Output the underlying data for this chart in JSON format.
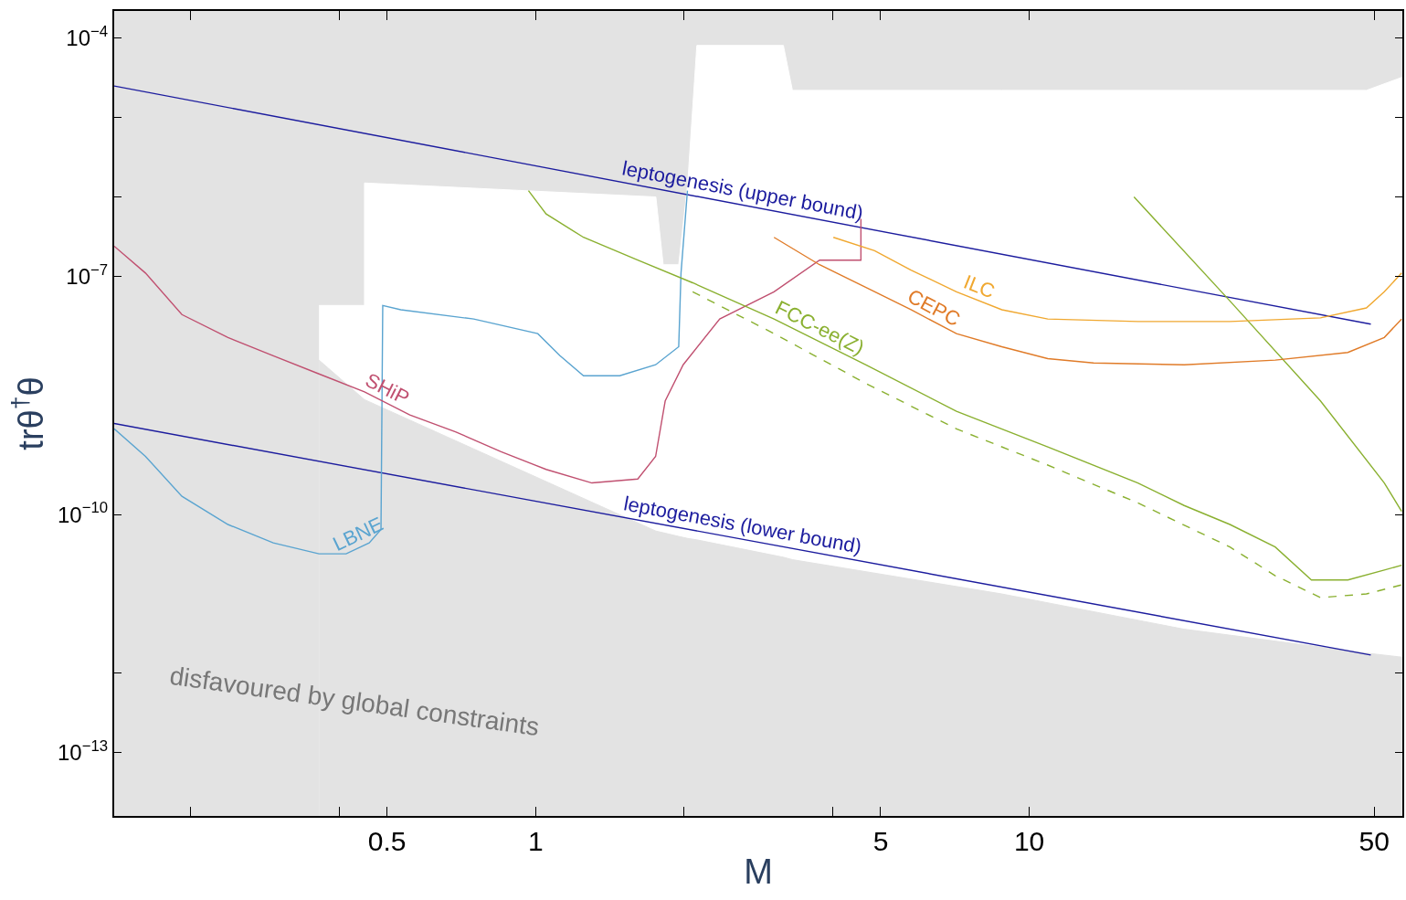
{
  "chart_data": {
    "type": "line",
    "xlabel": "M",
    "ylabel": "trθ$^{†}$θ",
    "log": "xy",
    "grid": false,
    "legend": false,
    "marker": "none",
    "xlim": [
      0.14,
      57
    ],
    "ylim": [
      1.6e-14,
      0.00022
    ],
    "xticks": [
      {
        "value": 0.2,
        "label": null
      },
      {
        "value": 0.4,
        "label": null
      },
      0.5,
      1,
      {
        "value": 2,
        "label": null
      },
      {
        "value": 4,
        "label": null
      },
      5,
      10,
      50
    ],
    "yticks": [
      {
        "value": 0.0001,
        "label": "10$^{−4}$"
      },
      {
        "value": 1e-05,
        "label": null
      },
      {
        "value": 1e-06,
        "label": null
      },
      {
        "value": 1e-07,
        "label": "10$^{−7}$"
      },
      {
        "value": 1e-10,
        "label": "10$^{−10}$"
      },
      {
        "value": 1e-12,
        "label": null
      },
      {
        "value": 1e-13,
        "label": "10$^{−13}$"
      }
    ],
    "annotations": [
      "disfavoured by global constraints"
    ],
    "series": [
      {
        "type": "area",
        "color": "#ffffff",
        "x": [
          0.364,
          0.45,
          0.45,
          1.752,
          1.813,
          1.949,
          2.033,
          2.121,
          3.176,
          3.313,
          8.8,
          20.59,
          48.2,
          56.8
        ],
        "values": [
          4.3e-08,
          4.3e-08,
          1.5e-06,
          1e-06,
          1.4e-07,
          1.4e-07,
          1.5e-06,
          8.1e-05,
          8.1e-05,
          2.2e-05,
          2.2e-05,
          2.2e-05,
          2.2e-05,
          3.2e-05
        ]
      },
      {
        "type": "area",
        "color": "#e3e3e3",
        "x": [
          0.364,
          0.45,
          1.752,
          1.813,
          1.949,
          2.033,
          2.121,
          3.176,
          3.313,
          8.8,
          20.59,
          48.2,
          56.8
        ],
        "values": [
          8.8e-09,
          2.8e-09,
          6.2e-11,
          5.9e-11,
          5.3e-11,
          5e-11,
          4.8e-11,
          2.9e-11,
          2.7e-11,
          1e-11,
          3.6e-12,
          1.8e-12,
          1.6e-12
        ]
      },
      {
        "name": "leptogenesis (upper bound)",
        "color": "#1c1c9e",
        "x": [
          0.14,
          49.2
        ],
        "values": [
          2.5e-05,
          2.5e-08
        ]
      },
      {
        "name": "leptogenesis (lower bound)",
        "color": "#1c1c9e",
        "x": [
          0.14,
          49.2
        ],
        "values": [
          1.4e-09,
          1.7e-12
        ]
      },
      {
        "name": "LBNE",
        "color": "#5aa4d0",
        "x": [
          0.14,
          0.162,
          0.192,
          0.238,
          0.294,
          0.364,
          0.413,
          0.46,
          0.486,
          0.49,
          0.533,
          0.749,
          1.01,
          1.12,
          1.25,
          1.48,
          1.75,
          1.949,
          1.97,
          2.03
        ],
        "values": [
          1.2e-09,
          5.4e-10,
          1.7e-10,
          7.5e-11,
          4.4e-11,
          3.2e-11,
          3.2e-11,
          4.4e-11,
          6.5e-11,
          4.3e-08,
          3.8e-08,
          2.9e-08,
          1.9e-08,
          1e-08,
          5.6e-09,
          5.6e-09,
          7.7e-09,
          1.3e-08,
          1.1e-07,
          1.2e-06
        ]
      },
      {
        "name": "SHiP",
        "color": "#c05070",
        "x": [
          0.14,
          0.162,
          0.192,
          0.238,
          0.294,
          0.364,
          0.45,
          0.556,
          0.688,
          0.851,
          1.05,
          1.3,
          1.61,
          1.75,
          1.83,
          1.99,
          2.36,
          3.04,
          3.76,
          4.56,
          4.56
        ],
        "values": [
          2.4e-07,
          1.1e-07,
          3.3e-08,
          1.7e-08,
          1e-08,
          5.9e-09,
          3.5e-09,
          1.8e-09,
          1.1e-09,
          6.2e-10,
          3.7e-10,
          2.5e-10,
          2.8e-10,
          5.4e-10,
          2.7e-09,
          7.7e-09,
          2.9e-08,
          6.4e-08,
          1.6e-07,
          1.6e-07,
          5.3e-07
        ]
      },
      {
        "name": "FCC-ee(Z)",
        "color": "#8ab030",
        "x": [
          0.967,
          1.05,
          1.25,
          1.61,
          2.08,
          3.04,
          4.66,
          7.12,
          10.9,
          16.6,
          20.6,
          25.5,
          31.5,
          37.3,
          44.2,
          52.4,
          56.8
        ],
        "values": [
          1.2e-06,
          6.1e-07,
          3.1e-07,
          1.6e-07,
          8.3e-08,
          2.9e-08,
          7.7e-09,
          2e-09,
          7.1e-10,
          2.5e-10,
          1.3e-10,
          7.5e-11,
          3.9e-11,
          1.5e-11,
          1.5e-11,
          2e-11,
          2.3e-11
        ]
      },
      {
        "color": "#8ab030",
        "line_style": "dashed",
        "x": [
          2.08,
          3.04,
          4.66,
          7.12,
          10.9,
          16.6,
          25.5,
          31.5,
          38.9,
          48.2,
          56.8
        ],
        "values": [
          6.4e-08,
          1.9e-08,
          4.5e-09,
          1.2e-09,
          4.2e-10,
          1.4e-10,
          3.9e-11,
          1.7e-11,
          9e-12,
          1e-11,
          1.3e-11
        ]
      },
      {
        "color": "#8ab030",
        "x": [
          16.3,
          25.5,
          38.9,
          52.4,
          56.8
        ],
        "values": [
          1e-06,
          4.9e-08,
          2.7e-09,
          2.5e-10,
          1.1e-10
        ]
      },
      {
        "name": "CEPC",
        "color": "#e07b28",
        "x": [
          3.04,
          3.76,
          4.66,
          5.76,
          7.12,
          8.8,
          10.9,
          13.5,
          20.6,
          31.5,
          44.2,
          52.4,
          56.8
        ],
        "values": [
          3.1e-07,
          1.4e-07,
          7.3e-08,
          3.8e-08,
          1.9e-08,
          1.3e-08,
          9.2e-09,
          8.1e-09,
          7.7e-09,
          8.8e-09,
          1.1e-08,
          1.7e-08,
          2.9e-08
        ]
      },
      {
        "name": "ILC",
        "color": "#f0a830",
        "x": [
          4.01,
          4.86,
          5.76,
          7.12,
          8.8,
          10.9,
          16.6,
          25.5,
          38.9,
          48.2,
          52.4,
          56.8
        ],
        "values": [
          3.1e-07,
          2.1e-07,
          1.2e-07,
          6.4e-08,
          3.8e-08,
          2.9e-08,
          2.7e-08,
          2.7e-08,
          3e-08,
          4e-08,
          6.4e-08,
          1.1e-07
        ]
      }
    ]
  }
}
